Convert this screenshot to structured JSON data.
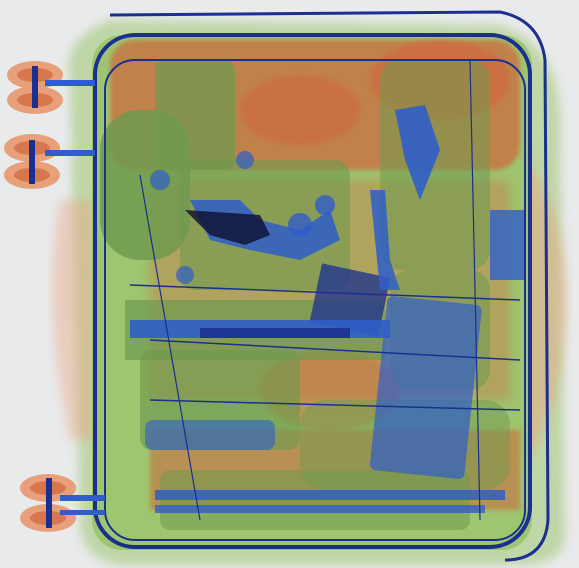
{
  "scan": {
    "subject": "x-ray-luggage-scan",
    "palette": {
      "background": "#e9eaec",
      "organic": "#d0653a",
      "organic_light": "#e8a07a",
      "mixed": "#6f9a4e",
      "mixed_light": "#9cc46d",
      "inorganic": "#2f5ec9",
      "inorganic_dark": "#1a2f8f",
      "dense": "#0c0f2e"
    }
  }
}
